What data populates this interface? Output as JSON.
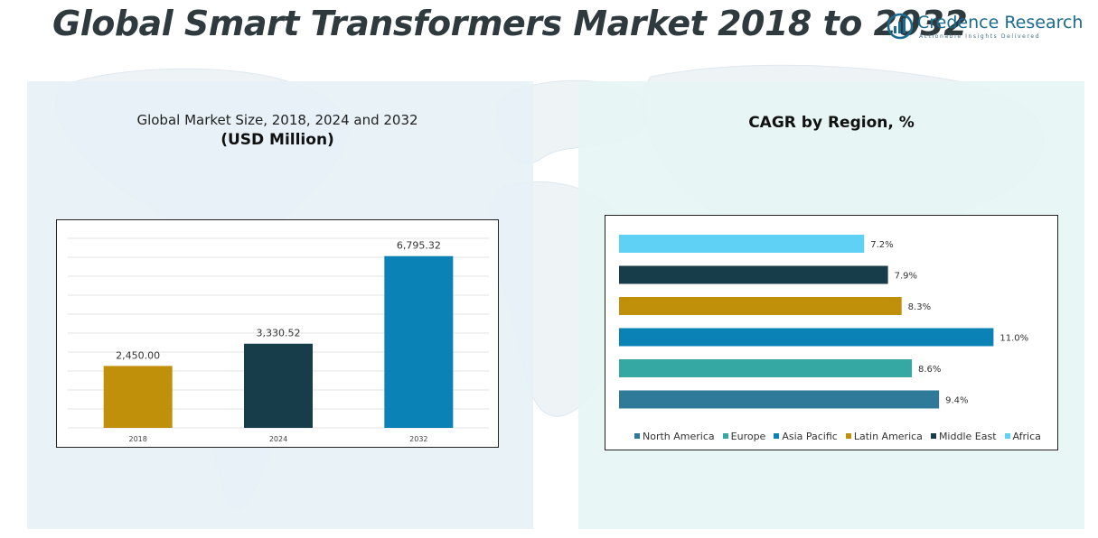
{
  "header": {
    "title": "Global Smart Transformers Market 2018 to 2032"
  },
  "logo": {
    "name": "Credence Research",
    "tagline": "Actionable Insights Delivered",
    "icon": "bar-chart-logo-icon",
    "color": "#1a6b8f"
  },
  "chart_data": [
    {
      "type": "bar",
      "title": "Global Market Size, 2018, 2024 and 2032",
      "subtitle": "(USD Million)",
      "categories": [
        "2018",
        "2024",
        "2032"
      ],
      "values": [
        2450.0,
        3330.52,
        6795.32
      ],
      "value_labels": [
        "2,450.00",
        "3,330.52",
        "6,795.32"
      ],
      "colors": [
        "#c0900a",
        "#173c4a",
        "#0a82b5"
      ],
      "ylim": [
        0,
        7500
      ],
      "grid": true
    },
    {
      "type": "bar",
      "orientation": "horizontal",
      "title": "CAGR by Region, %",
      "categories": [
        "North America",
        "Europe",
        "Asia Pacific",
        "Latin America",
        "Middle East",
        "Africa"
      ],
      "values": [
        9.4,
        8.6,
        11.0,
        8.3,
        7.9,
        7.2
      ],
      "value_labels": [
        "9.4%",
        "8.6%",
        "11.0%",
        "8.3%",
        "7.9%",
        "7.2%"
      ],
      "colors": [
        "#2e7a98",
        "#36a8a4",
        "#0a82b5",
        "#c0900a",
        "#173c4a",
        "#5fd1f5"
      ],
      "xlim": [
        0,
        11.6
      ],
      "legend_position": "bottom"
    }
  ]
}
